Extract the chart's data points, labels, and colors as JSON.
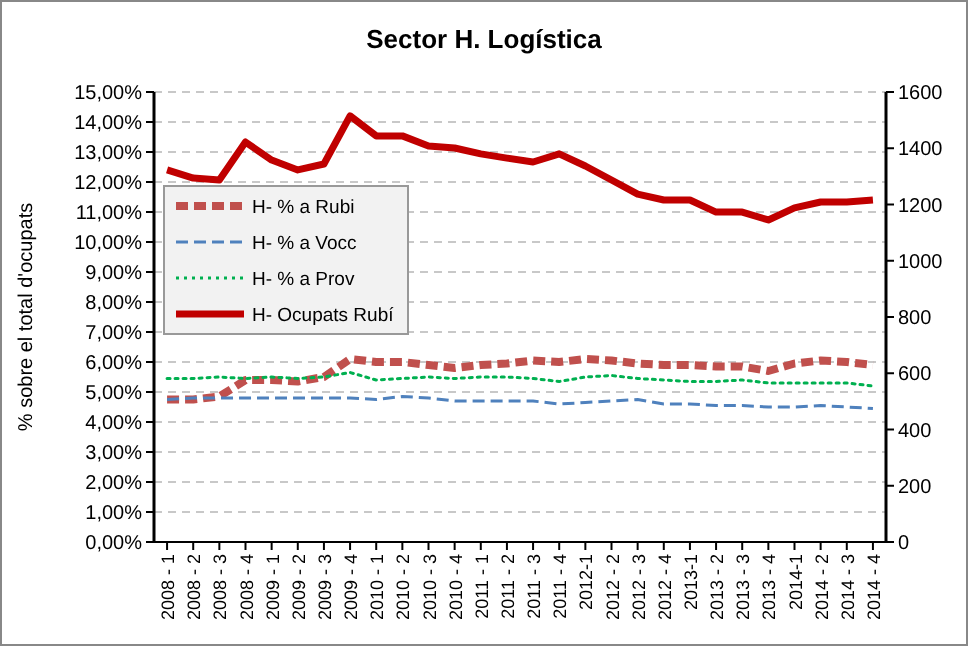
{
  "chart_data": {
    "type": "line",
    "title": "Sector H. Logística",
    "ylabel": "% sobre el total d'ocupats",
    "categories": [
      "2008 - 1",
      "2008 - 2",
      "2008 - 3",
      "2008 - 4",
      "2009 - 1",
      "2009 - 2",
      "2009 - 3",
      "2009 - 4",
      "2010 - 1",
      "2010 - 2",
      "2010 - 3",
      "2010 - 4",
      "2011 - 1",
      "2011 - 2",
      "2011 - 3",
      "2011 - 4",
      "2012-1",
      "2012 - 2",
      "2012 - 3",
      "2012 - 4",
      "2013-1",
      "2013 - 2",
      "2013 - 3",
      "2013 - 4",
      "2014-1",
      "2014 - 2",
      "2014 - 3",
      "2014 - 4"
    ],
    "series": [
      {
        "name": "H- % a Rubi",
        "color": "#c0504d",
        "line_style": "dashed",
        "values": [
          4.75,
          4.75,
          4.85,
          5.4,
          5.4,
          5.35,
          5.5,
          6.1,
          6.0,
          6.0,
          5.9,
          5.8,
          5.9,
          5.95,
          6.05,
          6.0,
          6.1,
          6.05,
          5.95,
          5.9,
          5.9,
          5.85,
          5.85,
          5.7,
          5.95,
          6.05,
          6.0,
          5.9
        ]
      },
      {
        "name": "H- % a Vocc",
        "color": "#4f81bd",
        "line_style": "dashed",
        "values": [
          4.75,
          4.8,
          4.8,
          4.8,
          4.8,
          4.8,
          4.8,
          4.8,
          4.75,
          4.85,
          4.8,
          4.7,
          4.7,
          4.7,
          4.7,
          4.6,
          4.65,
          4.7,
          4.75,
          4.6,
          4.6,
          4.55,
          4.55,
          4.5,
          4.5,
          4.55,
          4.5,
          4.45
        ]
      },
      {
        "name": "H- % a Prov",
        "color": "#00b050",
        "line_style": "dotted",
        "values": [
          5.45,
          5.45,
          5.5,
          5.45,
          5.5,
          5.45,
          5.5,
          5.65,
          5.4,
          5.45,
          5.5,
          5.45,
          5.5,
          5.5,
          5.45,
          5.35,
          5.5,
          5.55,
          5.45,
          5.4,
          5.35,
          5.35,
          5.4,
          5.3,
          5.3,
          5.3,
          5.3,
          5.2
        ]
      },
      {
        "name": "H- Ocupats Rubí",
        "color": "#c00000",
        "line_style": "solid",
        "axis": "y2",
        "values": [
          1323,
          1294,
          1287,
          1422,
          1358,
          1323,
          1344,
          1515,
          1444,
          1444,
          1408,
          1401,
          1380,
          1365,
          1351,
          1380,
          1337,
          1287,
          1237,
          1216,
          1216,
          1173,
          1173,
          1145,
          1188,
          1209,
          1209,
          1216
        ]
      }
    ],
    "ylim": [
      0,
      15
    ],
    "yticks": [
      {
        "value": 0,
        "label": "0,00%"
      },
      {
        "value": 1,
        "label": "1,00%"
      },
      {
        "value": 2,
        "label": "2,00%"
      },
      {
        "value": 3,
        "label": "3,00%"
      },
      {
        "value": 4,
        "label": "4,00%"
      },
      {
        "value": 5,
        "label": "5,00%"
      },
      {
        "value": 6,
        "label": "6,00%"
      },
      {
        "value": 7,
        "label": "7,00%"
      },
      {
        "value": 8,
        "label": "8,00%"
      },
      {
        "value": 9,
        "label": "9,00%"
      },
      {
        "value": 10,
        "label": "10,00%"
      },
      {
        "value": 11,
        "label": "11,00%"
      },
      {
        "value": 12,
        "label": "12,00%"
      },
      {
        "value": 13,
        "label": "13,00%"
      },
      {
        "value": 14,
        "label": "14,00%"
      },
      {
        "value": 15,
        "label": "15,00%"
      }
    ],
    "y2lim": [
      0,
      1600
    ],
    "y2ticks": [
      0,
      200,
      400,
      600,
      800,
      1000,
      1200,
      1400,
      1600
    ],
    "grid": "y",
    "legend": "top left",
    "marker": "none"
  }
}
